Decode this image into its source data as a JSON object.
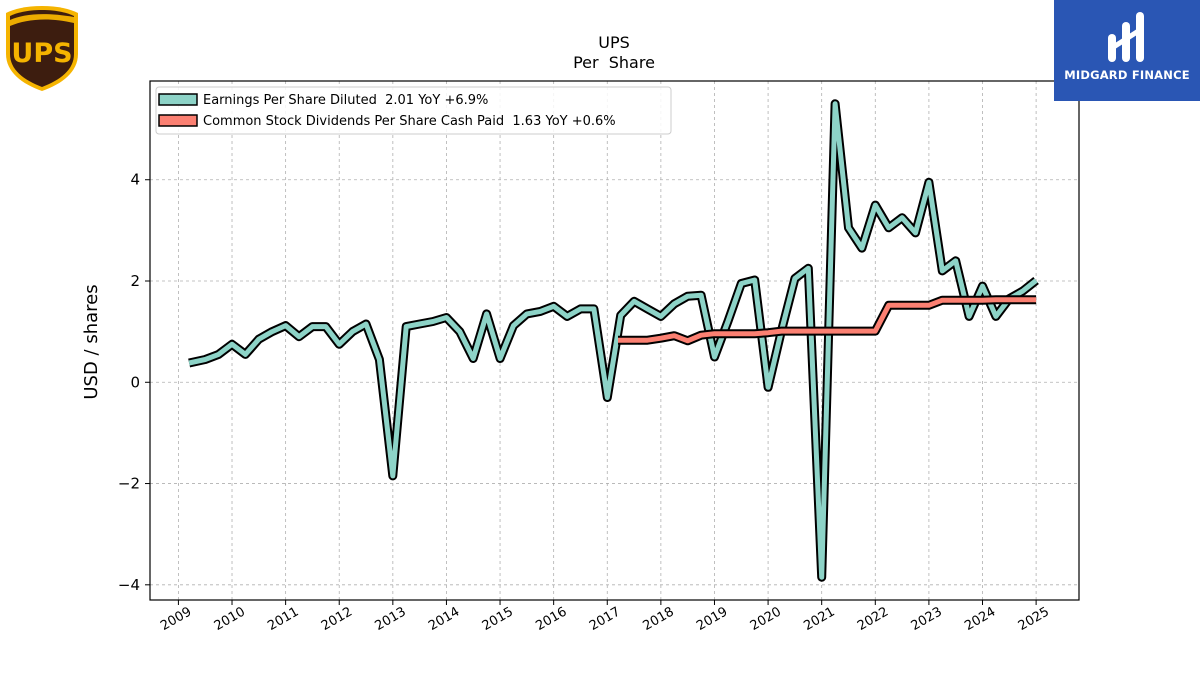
{
  "logos": {
    "left_brand": "UPS",
    "right_brand": "MIDGARD FINANCE"
  },
  "colors": {
    "eps": "#8dd3c7",
    "dividends": "#fb8072",
    "outline": "#000000",
    "grid": "#b0b0b0",
    "midgard_bg": "#2a56b4",
    "ups_brown": "#3d1d0f",
    "ups_gold": "#f5b400"
  },
  "chart_data": {
    "type": "line",
    "title": "UPS",
    "subtitle": "Per  Share",
    "xlabel": "",
    "ylabel": "USD / shares",
    "xlim": [
      2008.47,
      2025.8
    ],
    "ylim": [
      -4.3,
      5.95
    ],
    "x_ticks": [
      2009,
      2010,
      2011,
      2012,
      2013,
      2014,
      2015,
      2016,
      2017,
      2018,
      2019,
      2020,
      2021,
      2022,
      2023,
      2024,
      2025
    ],
    "x_tick_labels": [
      "2009",
      "2010",
      "2011",
      "2012",
      "2013",
      "2014",
      "2015",
      "2016",
      "2017",
      "2018",
      "2019",
      "2020",
      "2021",
      "2022",
      "2023",
      "2024",
      "2025"
    ],
    "y_ticks": [
      -4,
      -2,
      0,
      2,
      4
    ],
    "y_tick_labels": [
      "−4",
      "−2",
      "0",
      "2",
      "4"
    ],
    "grid": true,
    "legend_position": "top-left",
    "series": [
      {
        "name": "Earnings Per Share Diluted  2.01 YoY +6.9%",
        "color": "#8dd3c7",
        "points": [
          [
            2009.2,
            0.38
          ],
          [
            2009.5,
            0.45
          ],
          [
            2009.75,
            0.55
          ],
          [
            2010.0,
            0.75
          ],
          [
            2010.25,
            0.55
          ],
          [
            2010.5,
            0.85
          ],
          [
            2010.75,
            1.0
          ],
          [
            2011.0,
            1.12
          ],
          [
            2011.25,
            0.9
          ],
          [
            2011.5,
            1.1
          ],
          [
            2011.75,
            1.1
          ],
          [
            2012.0,
            0.75
          ],
          [
            2012.25,
            1.0
          ],
          [
            2012.5,
            1.15
          ],
          [
            2012.75,
            0.45
          ],
          [
            2013.0,
            -1.85
          ],
          [
            2013.25,
            1.1
          ],
          [
            2013.5,
            1.15
          ],
          [
            2013.75,
            1.2
          ],
          [
            2014.0,
            1.28
          ],
          [
            2014.25,
            1.0
          ],
          [
            2014.5,
            0.47
          ],
          [
            2014.75,
            1.35
          ],
          [
            2015.0,
            0.47
          ],
          [
            2015.25,
            1.12
          ],
          [
            2015.5,
            1.35
          ],
          [
            2015.75,
            1.4
          ],
          [
            2016.0,
            1.5
          ],
          [
            2016.25,
            1.3
          ],
          [
            2016.5,
            1.45
          ],
          [
            2016.75,
            1.45
          ],
          [
            2017.0,
            -0.3
          ],
          [
            2017.25,
            1.32
          ],
          [
            2017.5,
            1.6
          ],
          [
            2017.75,
            1.45
          ],
          [
            2018.0,
            1.3
          ],
          [
            2018.25,
            1.55
          ],
          [
            2018.5,
            1.7
          ],
          [
            2018.75,
            1.72
          ],
          [
            2019.0,
            0.5
          ],
          [
            2019.25,
            1.2
          ],
          [
            2019.5,
            1.95
          ],
          [
            2019.75,
            2.02
          ],
          [
            2020.0,
            -0.1
          ],
          [
            2020.25,
            1.02
          ],
          [
            2020.5,
            2.05
          ],
          [
            2020.75,
            2.25
          ],
          [
            2021.0,
            -3.85
          ],
          [
            2021.25,
            5.5
          ],
          [
            2021.5,
            3.05
          ],
          [
            2021.75,
            2.65
          ],
          [
            2022.0,
            3.5
          ],
          [
            2022.25,
            3.05
          ],
          [
            2022.5,
            3.25
          ],
          [
            2022.75,
            2.95
          ],
          [
            2023.0,
            3.95
          ],
          [
            2023.25,
            2.2
          ],
          [
            2023.5,
            2.4
          ],
          [
            2023.75,
            1.3
          ],
          [
            2024.0,
            1.9
          ],
          [
            2024.25,
            1.3
          ],
          [
            2024.5,
            1.65
          ],
          [
            2024.75,
            1.8
          ],
          [
            2025.0,
            2.01
          ]
        ]
      },
      {
        "name": "Common Stock Dividends Per Share Cash Paid  1.63 YoY +0.6%",
        "color": "#fb8072",
        "points": [
          [
            2017.2,
            0.83
          ],
          [
            2017.5,
            0.83
          ],
          [
            2017.75,
            0.83
          ],
          [
            2018.0,
            0.87
          ],
          [
            2018.25,
            0.92
          ],
          [
            2018.5,
            0.82
          ],
          [
            2018.75,
            0.93
          ],
          [
            2019.0,
            0.96
          ],
          [
            2019.25,
            0.96
          ],
          [
            2019.5,
            0.96
          ],
          [
            2019.75,
            0.96
          ],
          [
            2020.0,
            0.98
          ],
          [
            2020.25,
            1.01
          ],
          [
            2020.5,
            1.01
          ],
          [
            2020.75,
            1.01
          ],
          [
            2021.0,
            1.01
          ],
          [
            2021.25,
            1.01
          ],
          [
            2021.5,
            1.01
          ],
          [
            2021.75,
            1.01
          ],
          [
            2022.0,
            1.01
          ],
          [
            2022.25,
            1.52
          ],
          [
            2022.5,
            1.52
          ],
          [
            2022.75,
            1.52
          ],
          [
            2023.0,
            1.52
          ],
          [
            2023.25,
            1.62
          ],
          [
            2023.5,
            1.62
          ],
          [
            2023.75,
            1.62
          ],
          [
            2024.0,
            1.62
          ],
          [
            2024.25,
            1.63
          ],
          [
            2024.5,
            1.63
          ],
          [
            2024.75,
            1.63
          ],
          [
            2025.0,
            1.63
          ]
        ]
      }
    ]
  }
}
